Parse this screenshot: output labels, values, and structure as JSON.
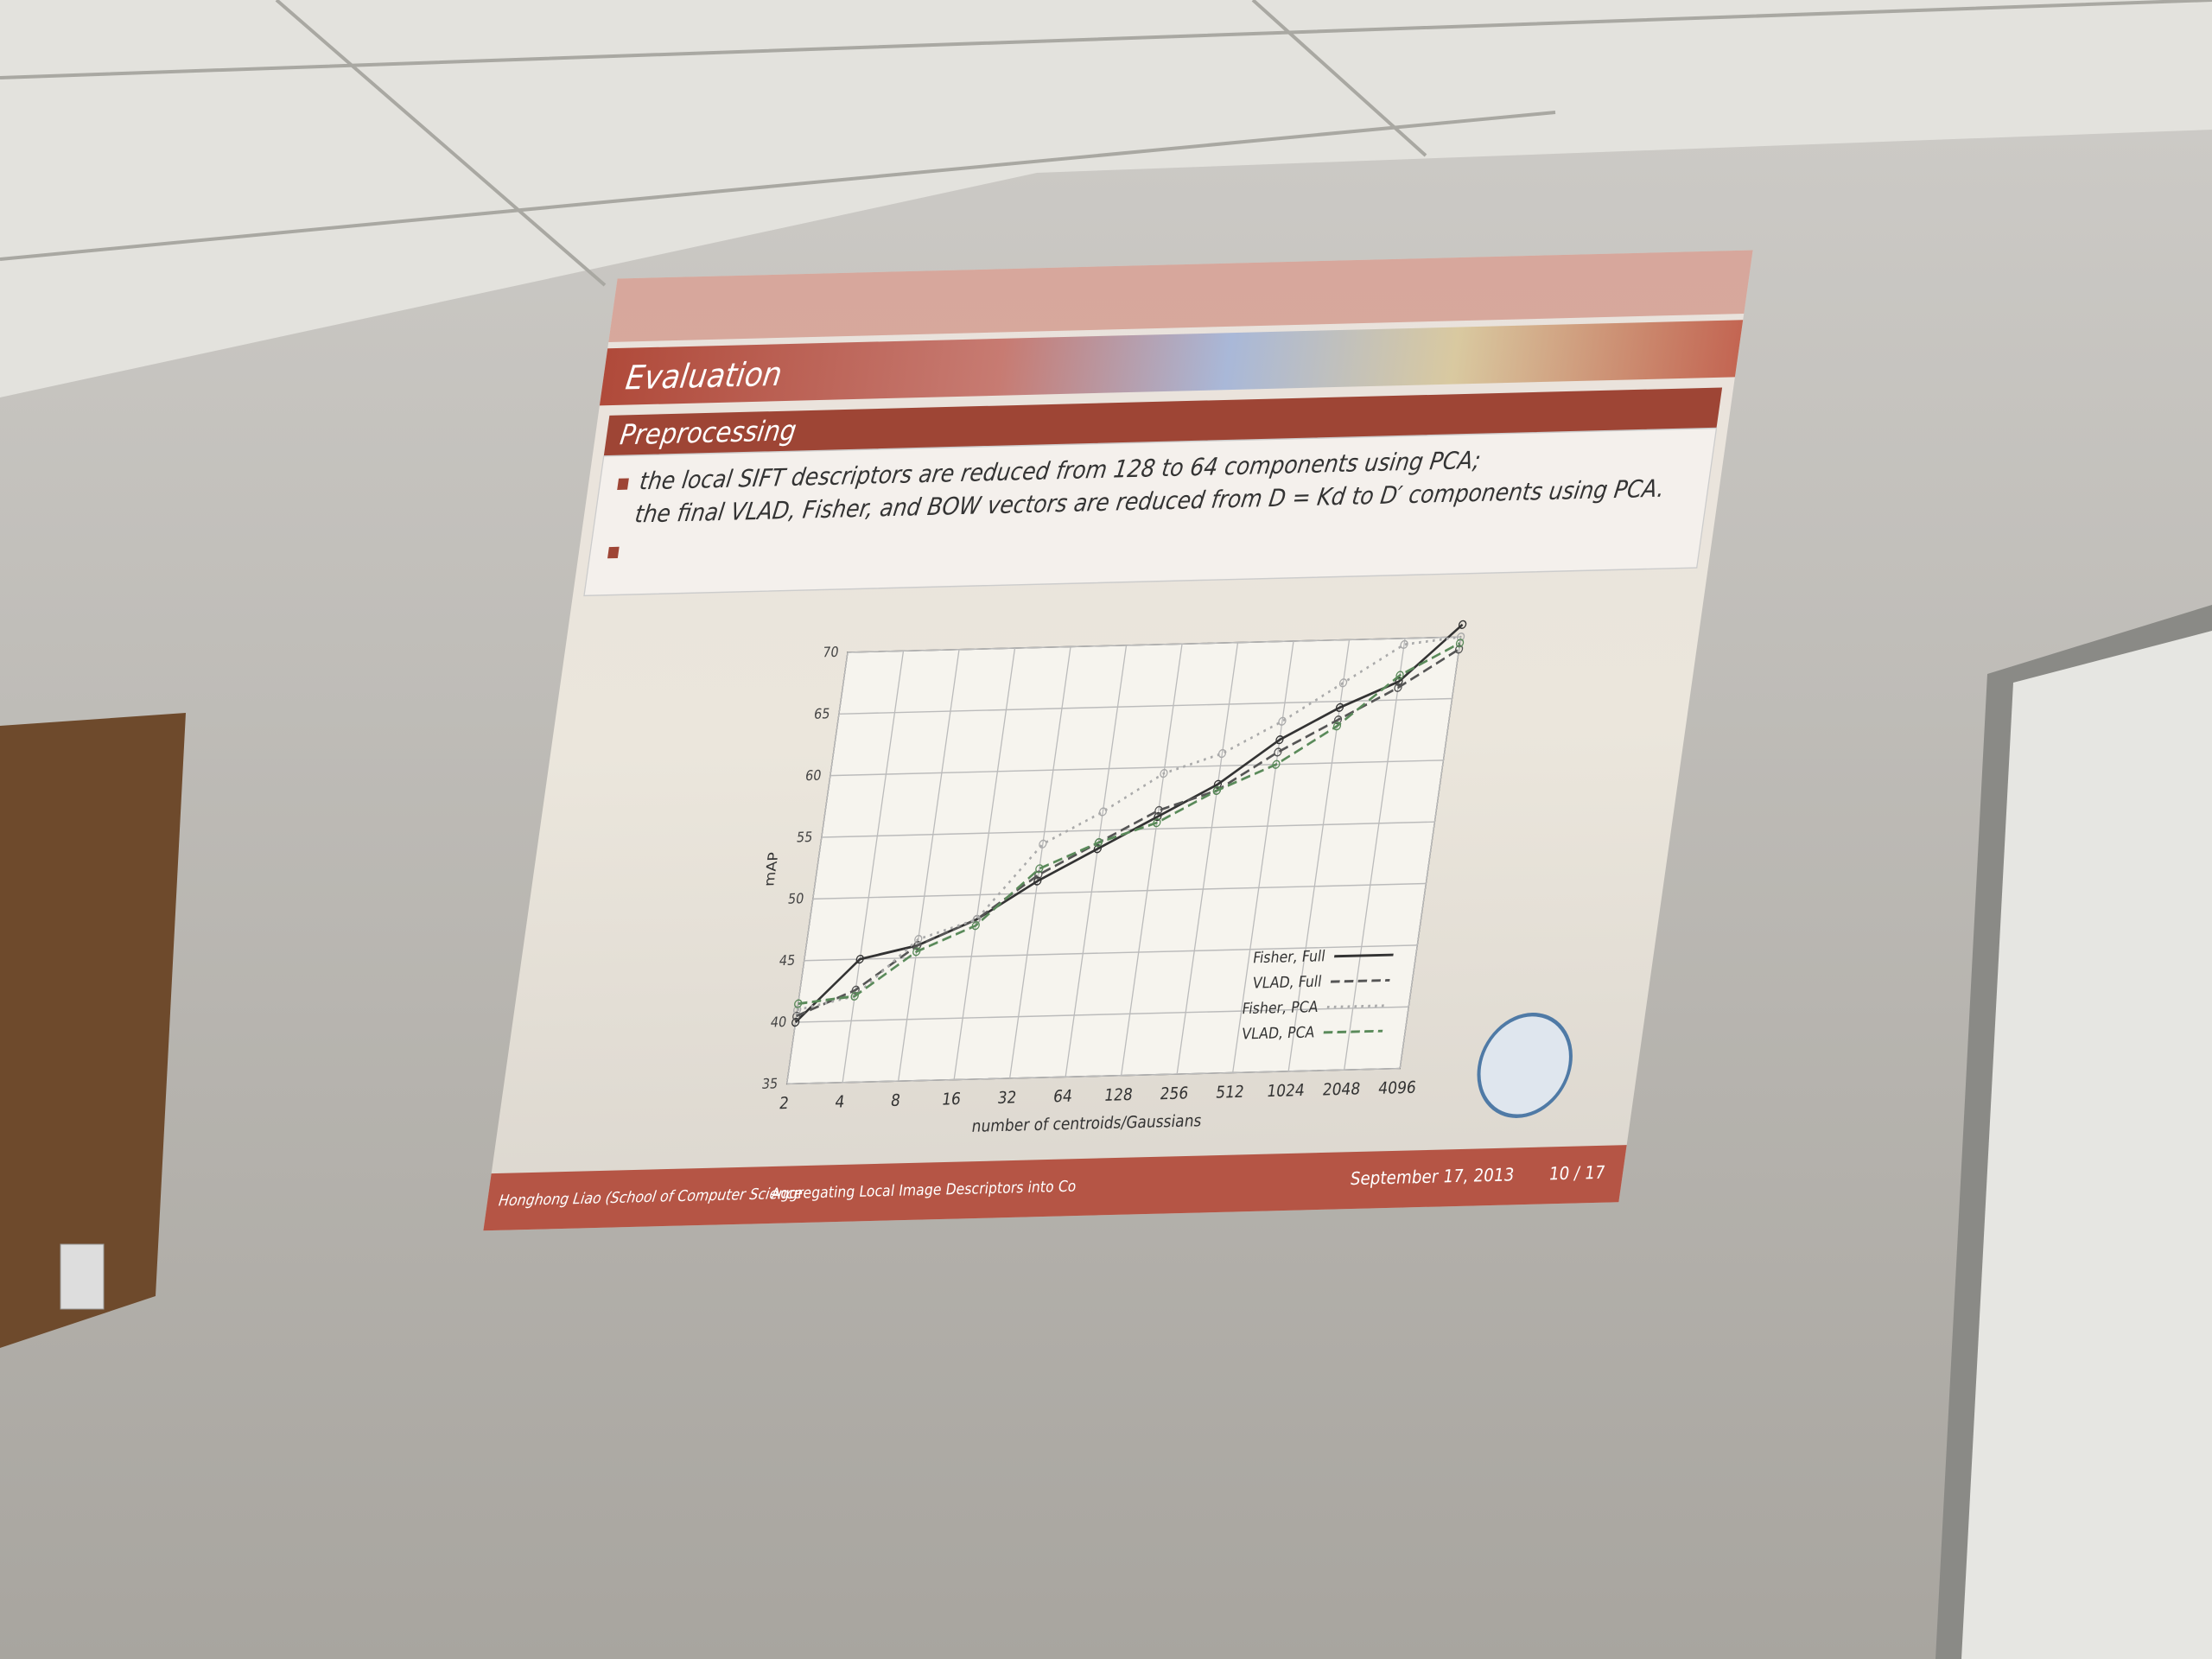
{
  "slide": {
    "title": "Evaluation",
    "block_title": "Preprocessing",
    "bullets": [
      "the local SIFT descriptors are reduced from 128 to 64 components using PCA;",
      "the final VLAD, Fisher, and BOW vectors are reduced from D = Kd to D′ components using PCA."
    ],
    "footer": {
      "author": "Honghong Liao (School of Computer Science",
      "short_title": "Aggregating Local Image Descriptors into Co",
      "date": "September 17, 2013",
      "page": "10 / 17"
    }
  },
  "chart_data": {
    "type": "line",
    "x_label": "number of centroids/Gaussians",
    "y_label": "mAP",
    "categories": [
      "2",
      "4",
      "8",
      "16",
      "32",
      "64",
      "128",
      "256",
      "512",
      "1024",
      "2048",
      "4096"
    ],
    "ylim": [
      35,
      70
    ],
    "yticks": [
      35,
      40,
      45,
      50,
      55,
      60,
      65,
      70
    ],
    "grid": true,
    "series": [
      {
        "name": "Fisher, Full",
        "color": "#333333",
        "style": "solid",
        "values": [
          40,
          45,
          46,
          48,
          51,
          53.5,
          56,
          58.5,
          62,
          64.5,
          66.5,
          71
        ]
      },
      {
        "name": "VLAD, Full",
        "color": "#555555",
        "style": "dashed",
        "values": [
          40.5,
          42.5,
          46,
          48,
          51.5,
          54,
          56.5,
          58,
          61,
          63.5,
          66,
          69
        ]
      },
      {
        "name": "Fisher, PCA",
        "color": "#aaaaaa",
        "style": "dotted",
        "values": [
          41,
          42,
          46.5,
          48,
          54,
          56.5,
          59.5,
          61,
          63.5,
          66.5,
          69.5,
          70
        ]
      },
      {
        "name": "VLAD, PCA",
        "color": "#5a8a5a",
        "style": "dashed",
        "values": [
          41.5,
          42,
          45.5,
          47.5,
          52,
          54,
          55.5,
          58,
          60,
          63,
          67,
          69.5
        ]
      }
    ]
  }
}
